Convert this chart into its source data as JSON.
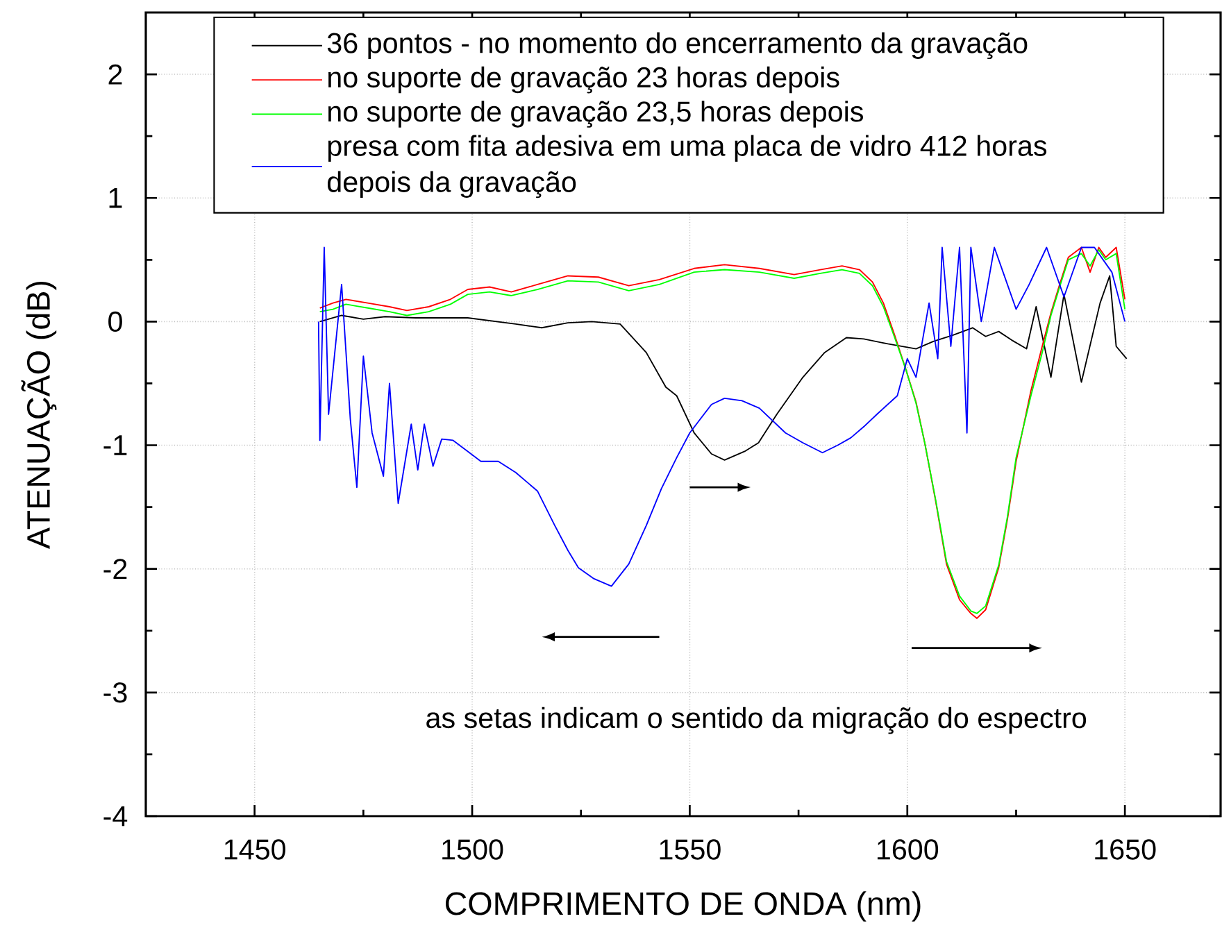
{
  "chart_data": {
    "type": "line",
    "xlabel": "COMPRIMENTO DE ONDA (nm)",
    "ylabel": "ATENUAÇÃO (dB)",
    "xlim": [
      1425,
      1672
    ],
    "ylim": [
      -4,
      2.5
    ],
    "xticks": [
      1450,
      1500,
      1550,
      1600,
      1650
    ],
    "yticks": [
      -4,
      -3,
      -2,
      -1,
      0,
      1,
      2
    ],
    "grid": true,
    "legend": "top",
    "marker": "none",
    "line_style": "solid",
    "annotations": [
      "as setas indicam o sentido da migração do espectro"
    ],
    "series": [
      {
        "name": "36 pontos - no momento do encerramento da gravação",
        "color": "#000000",
        "x": [
          1465,
          1470,
          1475,
          1480,
          1487,
          1499,
          1510,
          1516,
          1522,
          1527.5,
          1534,
          1540,
          1544.5,
          1547,
          1551,
          1555,
          1558,
          1562.6,
          1565.8,
          1570,
          1576,
          1581,
          1586,
          1590,
          1595.5,
          1602,
          1606,
          1610.5,
          1615,
          1618,
          1621,
          1624,
          1627.4,
          1629.6,
          1633,
          1636,
          1640,
          1644.3,
          1646.5,
          1648,
          1650.4
        ],
        "values": [
          0.0,
          0.05,
          0.02,
          0.04,
          0.03,
          0.03,
          -0.02,
          -0.05,
          -0.01,
          0.0,
          -0.02,
          -0.25,
          -0.53,
          -0.6,
          -0.9,
          -1.07,
          -1.12,
          -1.05,
          -0.98,
          -0.75,
          -0.45,
          -0.25,
          -0.13,
          -0.14,
          -0.18,
          -0.22,
          -0.16,
          -0.11,
          -0.05,
          -0.12,
          -0.08,
          -0.15,
          -0.22,
          0.12,
          -0.45,
          0.22,
          -0.49,
          0.15,
          0.37,
          -0.2,
          -0.3
        ]
      },
      {
        "name": "no suporte de gravação 23 horas depois",
        "color": "#ff0000",
        "x": [
          1465,
          1468,
          1471,
          1476,
          1481,
          1485,
          1490,
          1495,
          1499,
          1504,
          1509,
          1515,
          1522,
          1529,
          1536,
          1543,
          1551,
          1558,
          1566,
          1574,
          1580,
          1585,
          1589,
          1592,
          1594.5,
          1597,
          1599.6,
          1602,
          1604,
          1606.5,
          1609,
          1612,
          1614.6,
          1616,
          1618,
          1621,
          1623,
          1625,
          1628.4,
          1631,
          1633,
          1635,
          1637,
          1640,
          1642,
          1644,
          1645.6,
          1648,
          1650
        ],
        "values": [
          0.11,
          0.15,
          0.18,
          0.15,
          0.12,
          0.09,
          0.12,
          0.18,
          0.26,
          0.28,
          0.24,
          0.3,
          0.37,
          0.36,
          0.29,
          0.34,
          0.43,
          0.46,
          0.43,
          0.38,
          0.42,
          0.45,
          0.42,
          0.32,
          0.15,
          -0.1,
          -0.38,
          -0.65,
          -0.98,
          -1.45,
          -1.96,
          -2.25,
          -2.36,
          -2.4,
          -2.33,
          -1.99,
          -1.6,
          -1.13,
          -0.56,
          -0.2,
          0.07,
          0.3,
          0.52,
          0.6,
          0.4,
          0.6,
          0.52,
          0.6,
          0.18
        ]
      },
      {
        "name": "no suporte de gravação 23,5 horas depois",
        "color": "#00ff00",
        "x": [
          1465,
          1468,
          1471,
          1476,
          1481,
          1485,
          1490,
          1495,
          1499,
          1504,
          1509,
          1515,
          1522,
          1529,
          1536,
          1543,
          1551,
          1558,
          1566,
          1574,
          1580,
          1585,
          1589,
          1592,
          1594.5,
          1597,
          1599.6,
          1602,
          1604,
          1606.5,
          1609,
          1612,
          1614.6,
          1616,
          1618,
          1621,
          1623,
          1625,
          1628.4,
          1631,
          1633,
          1635,
          1637,
          1640,
          1642,
          1644,
          1645.6,
          1648,
          1650
        ],
        "values": [
          0.08,
          0.1,
          0.14,
          0.11,
          0.08,
          0.05,
          0.08,
          0.14,
          0.22,
          0.24,
          0.21,
          0.26,
          0.33,
          0.32,
          0.25,
          0.3,
          0.4,
          0.42,
          0.4,
          0.35,
          0.39,
          0.42,
          0.39,
          0.29,
          0.12,
          -0.12,
          -0.38,
          -0.66,
          -0.98,
          -1.44,
          -1.94,
          -2.22,
          -2.34,
          -2.36,
          -2.3,
          -1.97,
          -1.58,
          -1.1,
          -0.6,
          -0.25,
          0.05,
          0.28,
          0.5,
          0.55,
          0.45,
          0.58,
          0.5,
          0.55,
          0.1
        ]
      },
      {
        "name": "presa com fita adesiva em uma placa de vidro 412 horas depois da gravação",
        "color": "#0000ff",
        "x": [
          1464.7,
          1465,
          1466,
          1467,
          1470,
          1472,
          1473.5,
          1475,
          1477,
          1479.6,
          1481,
          1483,
          1486,
          1487.5,
          1489,
          1491,
          1493,
          1495.6,
          1499,
          1502,
          1506,
          1510,
          1515,
          1519,
          1522,
          1524.4,
          1528,
          1532,
          1536,
          1540,
          1543.5,
          1547,
          1550,
          1555,
          1558,
          1562,
          1566,
          1572,
          1576,
          1580.5,
          1584,
          1587,
          1590,
          1593,
          1597.7,
          1600,
          1602,
          1605,
          1607,
          1608,
          1610,
          1612,
          1613.7,
          1614.6,
          1617,
          1620,
          1622,
          1625,
          1628,
          1632,
          1636,
          1640,
          1643,
          1647,
          1650
        ],
        "values": [
          0.0,
          -0.96,
          0.6,
          -0.75,
          0.3,
          -0.79,
          -1.34,
          -0.28,
          -0.9,
          -1.25,
          -0.5,
          -1.47,
          -0.83,
          -1.2,
          -0.83,
          -1.17,
          -0.95,
          -0.96,
          -1.05,
          -1.13,
          -1.13,
          -1.22,
          -1.37,
          -1.65,
          -1.85,
          -1.99,
          -2.08,
          -2.14,
          -1.96,
          -1.65,
          -1.35,
          -1.1,
          -0.9,
          -0.67,
          -0.62,
          -0.64,
          -0.7,
          -0.9,
          -0.98,
          -1.06,
          -1.0,
          -0.94,
          -0.85,
          -0.75,
          -0.6,
          -0.3,
          -0.45,
          0.15,
          -0.3,
          0.6,
          -0.2,
          0.6,
          -0.9,
          0.6,
          0.0,
          0.6,
          0.4,
          0.1,
          0.3,
          0.6,
          0.2,
          0.6,
          0.6,
          0.4,
          0.0
        ]
      }
    ]
  }
}
